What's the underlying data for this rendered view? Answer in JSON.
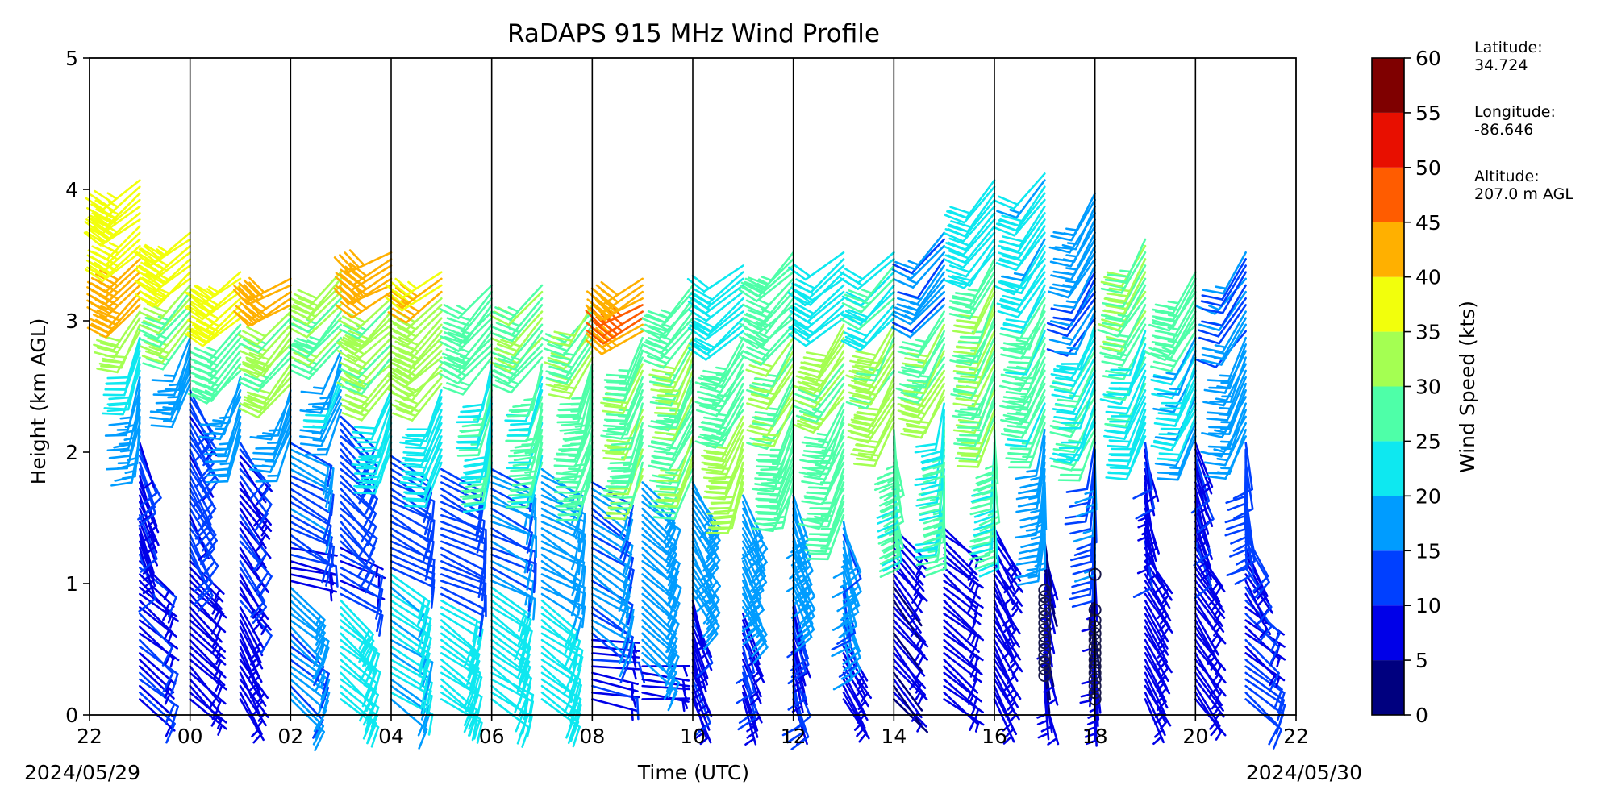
{
  "chart_data": {
    "type": "wind-barb-profile",
    "title": "RaDAPS 915 MHz Wind Profile",
    "xlabel": "Time (UTC)",
    "ylabel": "Height (km AGL)",
    "x_ticks": [
      "22",
      "00",
      "02",
      "04",
      "06",
      "08",
      "10",
      "12",
      "14",
      "16",
      "18",
      "20",
      "22"
    ],
    "x_tick_hours": [
      -2,
      0,
      2,
      4,
      6,
      8,
      10,
      12,
      14,
      16,
      18,
      20,
      22
    ],
    "xlim_hours": [
      -2,
      22
    ],
    "start_date": "2024/05/29",
    "end_date": "2024/05/30",
    "y_ticks": [
      "0",
      "1",
      "2",
      "3",
      "4",
      "5"
    ],
    "ylim_km": [
      0,
      5
    ],
    "profile_times_hours": [
      -1,
      0,
      1,
      2,
      3,
      4,
      5,
      6,
      7,
      8,
      9,
      10,
      11,
      12,
      13,
      14,
      15,
      16,
      17,
      18,
      19,
      20,
      21
    ],
    "colorbar": {
      "label": "Wind Speed (kts)",
      "ticks": [
        "0",
        "5",
        "10",
        "15",
        "20",
        "25",
        "30",
        "35",
        "40",
        "45",
        "50",
        "55",
        "60"
      ],
      "bins": [
        {
          "min": 0,
          "max": 5,
          "color": "#00007f"
        },
        {
          "min": 5,
          "max": 10,
          "color": "#0000e8"
        },
        {
          "min": 10,
          "max": 15,
          "color": "#0040ff"
        },
        {
          "min": 15,
          "max": 20,
          "color": "#009cff"
        },
        {
          "min": 20,
          "max": 25,
          "color": "#0ee8f0"
        },
        {
          "min": 25,
          "max": 30,
          "color": "#4effa8"
        },
        {
          "min": 30,
          "max": 35,
          "color": "#a4ff52"
        },
        {
          "min": 35,
          "max": 40,
          "color": "#f2ff0c"
        },
        {
          "min": 40,
          "max": 45,
          "color": "#ffb000"
        },
        {
          "min": 45,
          "max": 50,
          "color": "#ff5c00"
        },
        {
          "min": 50,
          "max": 55,
          "color": "#e80f00"
        },
        {
          "min": 55,
          "max": 60,
          "color": "#7f0000"
        }
      ]
    },
    "profiles": [
      {
        "hour": -1,
        "top_km": 4.1,
        "segments": [
          [
            0,
            1.2,
            130,
            9
          ],
          [
            1.2,
            2.1,
            160,
            10
          ],
          [
            2.1,
            2.6,
            190,
            17
          ],
          [
            2.6,
            2.9,
            200,
            22
          ],
          [
            2.9,
            3.1,
            210,
            32
          ],
          [
            3.1,
            3.5,
            225,
            42
          ],
          [
            3.5,
            4.1,
            230,
            38
          ]
        ]
      },
      {
        "hour": 0,
        "top_km": 3.7,
        "segments": [
          [
            0,
            1.2,
            135,
            8
          ],
          [
            1.2,
            2.5,
            150,
            11
          ],
          [
            2.5,
            2.9,
            200,
            18
          ],
          [
            2.9,
            3.3,
            220,
            30
          ],
          [
            3.3,
            3.7,
            230,
            37
          ]
        ]
      },
      {
        "hour": 1,
        "top_km": 3.4,
        "segments": [
          [
            0,
            0.8,
            150,
            7
          ],
          [
            0.8,
            2.1,
            145,
            10
          ],
          [
            2.1,
            2.6,
            200,
            17
          ],
          [
            2.6,
            3.0,
            220,
            28
          ],
          [
            3.0,
            3.4,
            230,
            36
          ]
        ]
      },
      {
        "hour": 2,
        "top_km": 3.35,
        "segments": [
          [
            0,
            1.0,
            130,
            16
          ],
          [
            1.0,
            1.3,
            100,
            9
          ],
          [
            1.3,
            2.1,
            120,
            14
          ],
          [
            2.1,
            2.5,
            200,
            18
          ],
          [
            2.5,
            3.1,
            220,
            30
          ],
          [
            3.1,
            3.35,
            240,
            42
          ]
        ]
      },
      {
        "hour": 3,
        "top_km": 3.4,
        "segments": [
          [
            0,
            0.9,
            130,
            22
          ],
          [
            0.9,
            1.3,
            115,
            10
          ],
          [
            1.3,
            2.3,
            135,
            12
          ],
          [
            2.3,
            2.8,
            200,
            19
          ],
          [
            2.8,
            3.4,
            220,
            30
          ]
        ]
      },
      {
        "hour": 4,
        "top_km": 3.55,
        "segments": [
          [
            0,
            1.1,
            125,
            21
          ],
          [
            1.1,
            2.0,
            120,
            12
          ],
          [
            2.0,
            2.5,
            200,
            22
          ],
          [
            2.5,
            3.2,
            225,
            31
          ],
          [
            3.2,
            3.55,
            240,
            43
          ]
        ]
      },
      {
        "hour": 5,
        "top_km": 3.4,
        "segments": [
          [
            0,
            0.9,
            125,
            22
          ],
          [
            0.9,
            1.9,
            115,
            13
          ],
          [
            1.9,
            2.5,
            200,
            22
          ],
          [
            2.5,
            3.2,
            225,
            32
          ],
          [
            3.2,
            3.4,
            235,
            40
          ]
        ]
      },
      {
        "hour": 6,
        "top_km": 3.3,
        "segments": [
          [
            0,
            1.0,
            125,
            23
          ],
          [
            1.0,
            1.9,
            115,
            15
          ],
          [
            1.9,
            2.7,
            195,
            24
          ],
          [
            2.7,
            3.3,
            220,
            28
          ]
        ]
      },
      {
        "hour": 7,
        "top_km": 3.3,
        "segments": [
          [
            0,
            0.9,
            125,
            22
          ],
          [
            0.9,
            1.9,
            120,
            18
          ],
          [
            1.9,
            2.7,
            195,
            26
          ],
          [
            2.7,
            3.3,
            220,
            29
          ]
        ]
      },
      {
        "hour": 8,
        "top_km": 3.15,
        "segments": [
          [
            0,
            0.6,
            100,
            9
          ],
          [
            0.6,
            1.8,
            125,
            16
          ],
          [
            1.8,
            2.7,
            195,
            27
          ],
          [
            2.7,
            3.15,
            215,
            30
          ]
        ]
      },
      {
        "hour": 9,
        "top_km": 3.35,
        "segments": [
          [
            0,
            0.4,
            95,
            8
          ],
          [
            0.4,
            1.8,
            130,
            17
          ],
          [
            1.8,
            2.9,
            200,
            29
          ],
          [
            2.9,
            3.35,
            240,
            44
          ]
        ]
      },
      {
        "hour": 10,
        "top_km": 3.3,
        "segments": [
          [
            0,
            0.9,
            160,
            9
          ],
          [
            0.9,
            1.8,
            150,
            17
          ],
          [
            1.8,
            2.9,
            205,
            30
          ],
          [
            2.9,
            3.3,
            220,
            27
          ]
        ]
      },
      {
        "hour": 11,
        "top_km": 3.45,
        "segments": [
          [
            0,
            0.8,
            160,
            9
          ],
          [
            0.8,
            1.7,
            155,
            18
          ],
          [
            1.7,
            2.3,
            200,
            31
          ],
          [
            2.3,
            2.9,
            210,
            27
          ],
          [
            2.9,
            3.45,
            230,
            22
          ]
        ]
      },
      {
        "hour": 12,
        "top_km": 3.55,
        "segments": [
          [
            0,
            0.9,
            165,
            10
          ],
          [
            0.9,
            1.7,
            160,
            18
          ],
          [
            1.7,
            2.3,
            200,
            28
          ],
          [
            2.3,
            2.9,
            210,
            30
          ],
          [
            2.9,
            3.55,
            225,
            28
          ]
        ]
      },
      {
        "hour": 13,
        "top_km": 3.55,
        "segments": [
          [
            0,
            0.6,
            150,
            9
          ],
          [
            0.6,
            1.5,
            165,
            16
          ],
          [
            1.5,
            2.4,
            205,
            28
          ],
          [
            2.4,
            3.0,
            215,
            30
          ],
          [
            3.0,
            3.55,
            230,
            22
          ]
        ]
      },
      {
        "hour": 14,
        "top_km": 3.55,
        "segments": [
          [
            0,
            1.45,
            140,
            6
          ],
          [
            1.45,
            2.2,
            175,
            26
          ],
          [
            2.2,
            3.0,
            210,
            31
          ],
          [
            3.0,
            3.55,
            225,
            24
          ]
        ]
      },
      {
        "hour": 15,
        "top_km": 3.7,
        "segments": [
          [
            0,
            1.45,
            130,
            7
          ],
          [
            1.45,
            2.4,
            185,
            25
          ],
          [
            2.4,
            3.1,
            210,
            31
          ],
          [
            3.1,
            3.7,
            220,
            16
          ]
        ]
      },
      {
        "hour": 16,
        "top_km": 4.1,
        "segments": [
          [
            0,
            1.45,
            150,
            7
          ],
          [
            1.45,
            2.2,
            180,
            25
          ],
          [
            2.2,
            3.5,
            205,
            29
          ],
          [
            3.5,
            4.1,
            215,
            22
          ]
        ]
      },
      {
        "hour": 17,
        "top_km": 4.15,
        "segments": [
          [
            0,
            1.35,
            170,
            6
          ],
          [
            1.35,
            2.2,
            185,
            18
          ],
          [
            2.2,
            3.3,
            205,
            26
          ],
          [
            3.3,
            4.15,
            215,
            21
          ]
        ]
      },
      {
        "hour": 18,
        "top_km": 4.0,
        "segments": [
          [
            0,
            1.2,
            180,
            5
          ],
          [
            1.2,
            2.1,
            185,
            14
          ],
          [
            2.1,
            3.0,
            205,
            24
          ],
          [
            3.0,
            4.0,
            210,
            16
          ]
        ]
      },
      {
        "hour": 19,
        "top_km": 3.65,
        "segments": [
          [
            0,
            1.3,
            150,
            8
          ],
          [
            1.3,
            2.1,
            170,
            10
          ],
          [
            2.1,
            3.0,
            205,
            24
          ],
          [
            3.0,
            3.65,
            210,
            29
          ]
        ]
      },
      {
        "hour": 20,
        "top_km": 3.4,
        "segments": [
          [
            0,
            1.3,
            145,
            8
          ],
          [
            1.3,
            2.1,
            160,
            9
          ],
          [
            2.1,
            2.9,
            205,
            20
          ],
          [
            2.9,
            3.4,
            215,
            28
          ]
        ]
      },
      {
        "hour": 21,
        "top_km": 3.55,
        "segments": [
          [
            0,
            0.9,
            130,
            11
          ],
          [
            0.9,
            1.4,
            150,
            9
          ],
          [
            1.4,
            2.1,
            175,
            12
          ],
          [
            2.1,
            2.9,
            205,
            18
          ],
          [
            2.9,
            3.55,
            215,
            15
          ]
        ]
      }
    ],
    "calm_markers": [
      {
        "hour": 17,
        "heights_km": [
          0.3,
          0.35,
          0.4,
          0.45,
          0.5,
          0.55,
          0.6,
          0.65,
          0.7,
          0.75,
          0.8,
          0.85,
          0.9,
          0.95
        ]
      },
      {
        "hour": 18,
        "heights_km": [
          0.12,
          0.17,
          0.22,
          0.27,
          0.32,
          0.37,
          0.42,
          0.47,
          0.52,
          0.57,
          0.62,
          0.67,
          0.72,
          0.8,
          1.07
        ]
      }
    ]
  },
  "station": {
    "latitude_label": "Latitude:",
    "latitude_value": "34.724",
    "longitude_label": "Longitude:",
    "longitude_value": "-86.646",
    "altitude_label": "Altitude:",
    "altitude_value": "207.0 m AGL"
  }
}
